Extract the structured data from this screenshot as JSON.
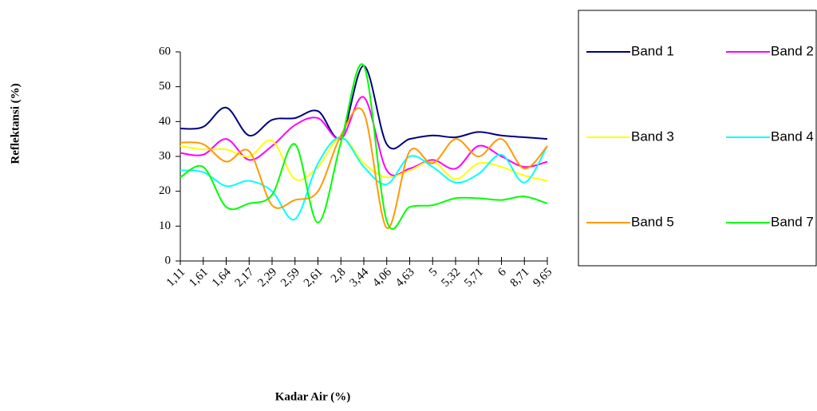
{
  "chart_data": {
    "type": "line",
    "smooth": true,
    "legend": "right",
    "y_label": "Reflektansi (%)",
    "x_label": "Kadar Air (%)",
    "categories": [
      "1,11",
      "1,61",
      "1,64",
      "2,17",
      "2,29",
      "2,59",
      "2,61",
      "2,8",
      "3,44",
      "4,06",
      "4,63",
      "5",
      "5,32",
      "5,71",
      "6",
      "8,71",
      "9,65"
    ],
    "ylim": [
      0,
      60
    ],
    "yticks": [
      0,
      10,
      20,
      30,
      40,
      50,
      60
    ],
    "series": [
      {
        "name": "Band 1",
        "color": "#000080",
        "values": [
          38,
          38.5,
          44,
          36,
          40.5,
          41,
          43,
          35.5,
          56,
          33.5,
          35,
          36,
          35.5,
          37,
          36,
          35.5,
          35
        ]
      },
      {
        "name": "Band 2",
        "color": "#ff00ff",
        "values": [
          31,
          30.5,
          35,
          29,
          33,
          39,
          41,
          35,
          47,
          26,
          26.5,
          29,
          26.5,
          33,
          30,
          27,
          28.5
        ]
      },
      {
        "name": "Band 3",
        "color": "#ffff00",
        "values": [
          33,
          32,
          32,
          30,
          34.5,
          23.5,
          27,
          35.5,
          28,
          24,
          26,
          28.5,
          23.5,
          28,
          27,
          24.5,
          23
        ]
      },
      {
        "name": "Band 4",
        "color": "#00ffff",
        "values": [
          26,
          25.5,
          21.5,
          23,
          20,
          12,
          28,
          35.5,
          27,
          22,
          30,
          27,
          22.5,
          25,
          30.5,
          22.5,
          33
        ]
      },
      {
        "name": "Band 5",
        "color": "#ff9900",
        "values": [
          34,
          33.5,
          28.5,
          31.5,
          16,
          17.5,
          20,
          36,
          42.5,
          9.5,
          31.5,
          28,
          35,
          30,
          35,
          26.5,
          33
        ]
      },
      {
        "name": "Band 7",
        "color": "#00ff00",
        "values": [
          24,
          27,
          15.5,
          16.5,
          19,
          33.5,
          11,
          34,
          56,
          11.5,
          15.5,
          16,
          18,
          18,
          17.5,
          18.5,
          16.5
        ]
      }
    ]
  }
}
